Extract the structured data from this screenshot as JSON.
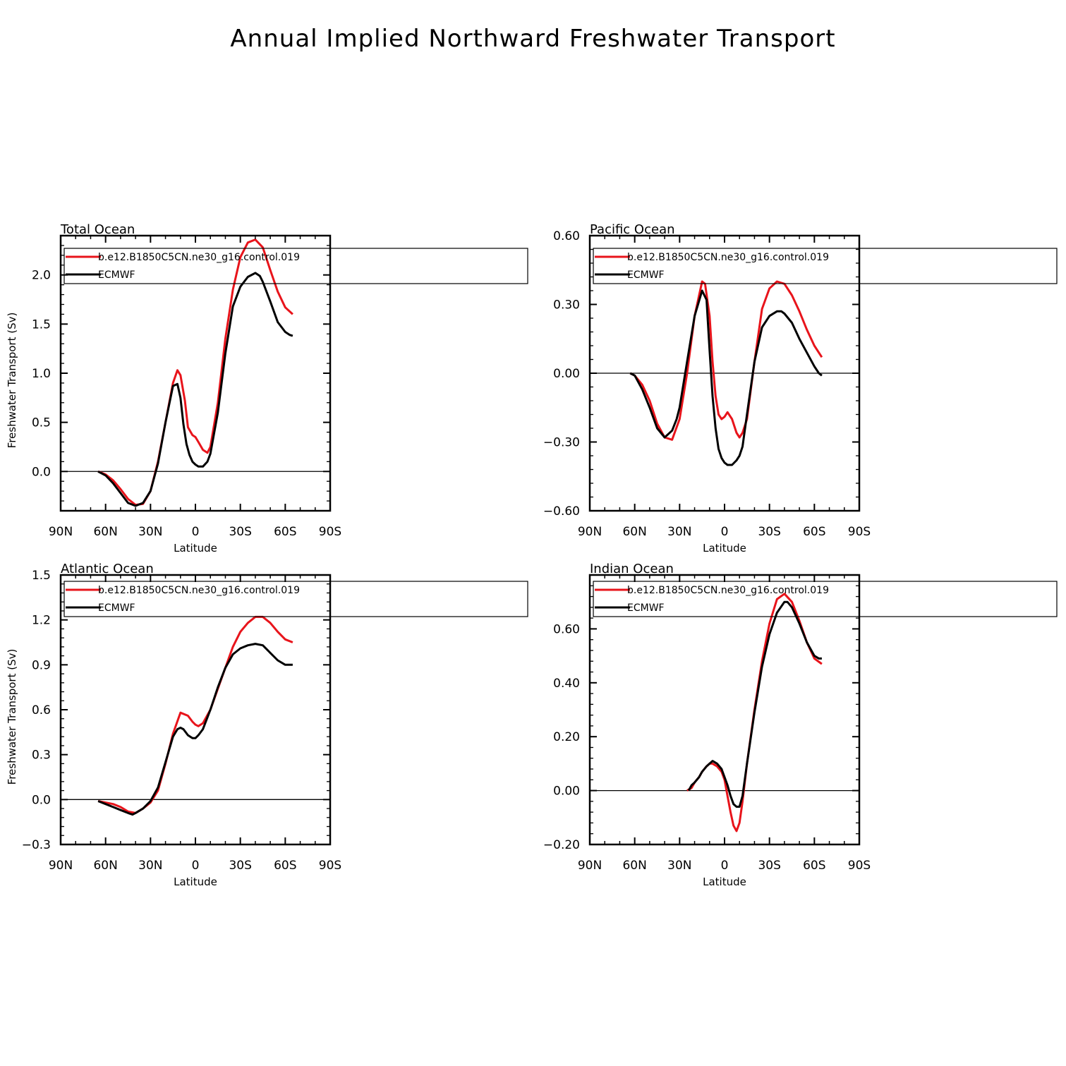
{
  "title": "Annual Implied Northward Freshwater Transport",
  "colors": {
    "model": "#e8141b",
    "obs": "#000000"
  },
  "chart_data": [
    {
      "type": "line",
      "title": "Total Ocean",
      "xlabel": "Latitude",
      "ylabel": "Freshwater Transport (Sv)",
      "xlim": [
        90,
        -90
      ],
      "ylim": [
        -0.4,
        2.4
      ],
      "xticks": [
        90,
        60,
        30,
        0,
        -30,
        -60,
        -90
      ],
      "xtick_labels": [
        "90N",
        "60N",
        "30N",
        "0",
        "30S",
        "60S",
        "90S"
      ],
      "yticks": [
        0.0,
        0.5,
        1.0,
        1.5,
        2.0
      ],
      "ytick_labels": [
        "0.0",
        "0.5",
        "1.0",
        "1.5",
        "2.0"
      ],
      "legend": "top-right",
      "series": [
        {
          "name": "b.e12.B1850C5CN.ne30_g16.control.019",
          "color": "#e8141b",
          "x": [
            65,
            60,
            55,
            50,
            45,
            40,
            35,
            30,
            25,
            20,
            15,
            12,
            10,
            7,
            5,
            2,
            0,
            -2,
            -5,
            -8,
            -10,
            -15,
            -20,
            -25,
            -30,
            -35,
            -40,
            -45,
            -50,
            -55,
            -60,
            -65
          ],
          "y": [
            0,
            -0.03,
            -0.09,
            -0.18,
            -0.28,
            -0.34,
            -0.33,
            -0.2,
            0.1,
            0.5,
            0.9,
            1.03,
            0.98,
            0.72,
            0.45,
            0.37,
            0.35,
            0.3,
            0.22,
            0.19,
            0.25,
            0.7,
            1.35,
            1.85,
            2.18,
            2.33,
            2.36,
            2.28,
            2.05,
            1.83,
            1.67,
            1.6
          ]
        },
        {
          "name": "ECMWF",
          "color": "#000000",
          "x": [
            65,
            60,
            55,
            50,
            45,
            40,
            35,
            30,
            25,
            20,
            15,
            12,
            10,
            8,
            6,
            4,
            2,
            0,
            -2,
            -5,
            -8,
            -10,
            -15,
            -20,
            -25,
            -30,
            -35,
            -40,
            -43,
            -45,
            -50,
            -55,
            -60,
            -63,
            -65
          ],
          "y": [
            0,
            -0.04,
            -0.12,
            -0.22,
            -0.32,
            -0.35,
            -0.32,
            -0.2,
            0.08,
            0.5,
            0.87,
            0.89,
            0.75,
            0.48,
            0.28,
            0.17,
            0.1,
            0.07,
            0.05,
            0.05,
            0.1,
            0.18,
            0.6,
            1.2,
            1.68,
            1.88,
            1.98,
            2.02,
            1.99,
            1.93,
            1.73,
            1.52,
            1.42,
            1.39,
            1.38
          ]
        }
      ]
    },
    {
      "type": "line",
      "title": "Pacific Ocean",
      "xlabel": "Latitude",
      "ylabel": "",
      "xlim": [
        90,
        -90
      ],
      "ylim": [
        -0.6,
        0.6
      ],
      "xticks": [
        90,
        60,
        30,
        0,
        -30,
        -60,
        -90
      ],
      "xtick_labels": [
        "90N",
        "60N",
        "30N",
        "0",
        "30S",
        "60S",
        "90S"
      ],
      "yticks": [
        -0.6,
        -0.3,
        0.0,
        0.3,
        0.6
      ],
      "ytick_labels": [
        "−0.60",
        "−0.30",
        "0.00",
        "0.30",
        "0.60"
      ],
      "legend": "top-right",
      "series": [
        {
          "name": "b.e12.B1850C5CN.ne30_g16.control.019",
          "color": "#e8141b",
          "x": [
            63,
            60,
            55,
            50,
            45,
            40,
            35,
            30,
            25,
            20,
            15,
            13,
            10,
            8,
            6,
            4,
            2,
            0,
            -2,
            -5,
            -8,
            -10,
            -12,
            -15,
            -20,
            -25,
            -30,
            -35,
            -40,
            -45,
            -50,
            -55,
            -60,
            -65
          ],
          "y": [
            0,
            -0.01,
            -0.05,
            -0.12,
            -0.22,
            -0.28,
            -0.29,
            -0.2,
            0.0,
            0.25,
            0.4,
            0.39,
            0.25,
            0.05,
            -0.1,
            -0.18,
            -0.2,
            -0.19,
            -0.17,
            -0.2,
            -0.26,
            -0.28,
            -0.26,
            -0.2,
            0.05,
            0.28,
            0.37,
            0.4,
            0.39,
            0.34,
            0.27,
            0.19,
            0.12,
            0.07
          ]
        },
        {
          "name": "ECMWF",
          "color": "#000000",
          "x": [
            63,
            60,
            55,
            50,
            45,
            40,
            35,
            32,
            30,
            25,
            20,
            15,
            12,
            10,
            8,
            6,
            4,
            2,
            0,
            -2,
            -5,
            -8,
            -10,
            -12,
            -15,
            -20,
            -25,
            -30,
            -35,
            -38,
            -40,
            -45,
            -50,
            -55,
            -60,
            -63,
            -65
          ],
          "y": [
            0,
            -0.01,
            -0.07,
            -0.15,
            -0.24,
            -0.28,
            -0.25,
            -0.2,
            -0.15,
            0.05,
            0.25,
            0.36,
            0.32,
            0.1,
            -0.1,
            -0.24,
            -0.33,
            -0.37,
            -0.39,
            -0.4,
            -0.4,
            -0.38,
            -0.36,
            -0.32,
            -0.18,
            0.05,
            0.2,
            0.25,
            0.27,
            0.27,
            0.26,
            0.22,
            0.15,
            0.09,
            0.03,
            0.0,
            -0.01
          ]
        }
      ]
    },
    {
      "type": "line",
      "title": "Atlantic Ocean",
      "xlabel": "Latitude",
      "ylabel": "Freshwater Transport (Sv)",
      "xlim": [
        90,
        -90
      ],
      "ylim": [
        -0.3,
        1.5
      ],
      "xticks": [
        90,
        60,
        30,
        0,
        -30,
        -60,
        -90
      ],
      "xtick_labels": [
        "90N",
        "60N",
        "30N",
        "0",
        "30S",
        "60S",
        "90S"
      ],
      "yticks": [
        -0.3,
        0.0,
        0.3,
        0.6,
        0.9,
        1.2,
        1.5
      ],
      "ytick_labels": [
        "−0.3",
        "0.0",
        "0.3",
        "0.6",
        "0.9",
        "1.2",
        "1.5"
      ],
      "legend": "top-right",
      "series": [
        {
          "name": "b.e12.B1850C5CN.ne30_g16.control.019",
          "color": "#e8141b",
          "x": [
            65,
            60,
            55,
            50,
            45,
            40,
            35,
            30,
            25,
            20,
            15,
            10,
            5,
            2,
            0,
            -2,
            -5,
            -10,
            -15,
            -20,
            -25,
            -30,
            -35,
            -40,
            -45,
            -50,
            -55,
            -60,
            -65
          ],
          "y": [
            -0.01,
            -0.02,
            -0.03,
            -0.05,
            -0.08,
            -0.09,
            -0.06,
            -0.02,
            0.06,
            0.24,
            0.44,
            0.58,
            0.56,
            0.52,
            0.5,
            0.49,
            0.51,
            0.6,
            0.74,
            0.88,
            1.02,
            1.12,
            1.18,
            1.22,
            1.22,
            1.18,
            1.12,
            1.07,
            1.05
          ]
        },
        {
          "name": "ECMWF",
          "color": "#000000",
          "x": [
            65,
            60,
            55,
            50,
            45,
            42,
            40,
            35,
            30,
            25,
            20,
            15,
            12,
            10,
            8,
            5,
            2,
            0,
            -2,
            -5,
            -10,
            -15,
            -20,
            -25,
            -30,
            -35,
            -40,
            -45,
            -50,
            -55,
            -60,
            -65
          ],
          "y": [
            -0.01,
            -0.03,
            -0.05,
            -0.07,
            -0.09,
            -0.1,
            -0.09,
            -0.06,
            -0.01,
            0.08,
            0.25,
            0.42,
            0.47,
            0.48,
            0.47,
            0.43,
            0.41,
            0.41,
            0.43,
            0.47,
            0.6,
            0.75,
            0.88,
            0.97,
            1.01,
            1.03,
            1.04,
            1.03,
            0.98,
            0.93,
            0.9,
            0.9
          ]
        }
      ]
    },
    {
      "type": "line",
      "title": "Indian Ocean",
      "xlabel": "Latitude",
      "ylabel": "",
      "xlim": [
        90,
        -90
      ],
      "ylim": [
        -0.2,
        0.8
      ],
      "xticks": [
        90,
        60,
        30,
        0,
        -30,
        -60,
        -90
      ],
      "xtick_labels": [
        "90N",
        "60N",
        "30N",
        "0",
        "30S",
        "60S",
        "90S"
      ],
      "yticks": [
        -0.2,
        0.0,
        0.2,
        0.4,
        0.6
      ],
      "ytick_labels": [
        "−0.20",
        "0.00",
        "0.20",
        "0.40",
        "0.60"
      ],
      "legend": "top-right",
      "series": [
        {
          "name": "b.e12.B1850C5CN.ne30_g16.control.019",
          "color": "#e8141b",
          "x": [
            25,
            22,
            20,
            17,
            15,
            12,
            10,
            8,
            5,
            2,
            0,
            -2,
            -4,
            -6,
            -8,
            -10,
            -12,
            -15,
            -20,
            -25,
            -30,
            -35,
            -40,
            -45,
            -50,
            -55,
            -60,
            -65
          ],
          "y": [
            0,
            0.01,
            0.03,
            0.05,
            0.07,
            0.09,
            0.1,
            0.1,
            0.09,
            0.07,
            0.04,
            -0.02,
            -0.08,
            -0.13,
            -0.15,
            -0.12,
            -0.04,
            0.1,
            0.3,
            0.48,
            0.62,
            0.71,
            0.73,
            0.7,
            0.63,
            0.55,
            0.49,
            0.47
          ]
        },
        {
          "name": "ECMWF",
          "color": "#000000",
          "x": [
            24,
            22,
            20,
            17,
            15,
            12,
            10,
            8,
            5,
            2,
            0,
            -2,
            -4,
            -6,
            -8,
            -10,
            -12,
            -15,
            -20,
            -25,
            -30,
            -35,
            -40,
            -42,
            -45,
            -50,
            -55,
            -60,
            -63,
            -65
          ],
          "y": [
            0,
            0.02,
            0.03,
            0.05,
            0.07,
            0.09,
            0.1,
            0.11,
            0.1,
            0.08,
            0.05,
            0.02,
            -0.02,
            -0.05,
            -0.06,
            -0.06,
            -0.02,
            0.1,
            0.29,
            0.46,
            0.58,
            0.66,
            0.7,
            0.7,
            0.68,
            0.62,
            0.55,
            0.5,
            0.49,
            0.49
          ]
        }
      ]
    }
  ]
}
